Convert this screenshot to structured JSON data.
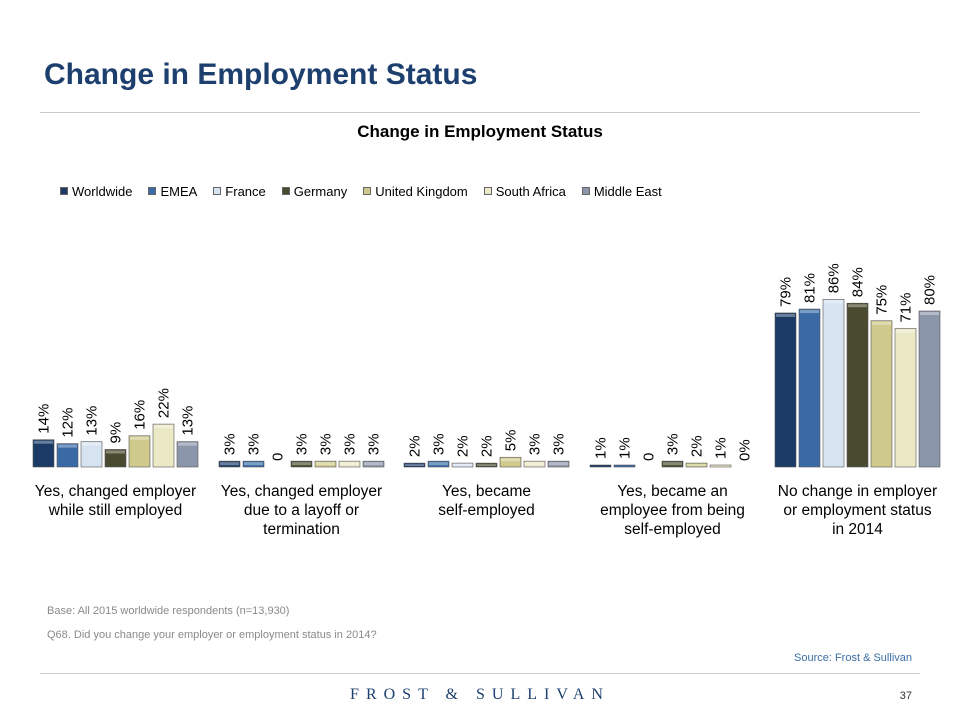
{
  "page": {
    "title": "Change in Employment Status",
    "base_note": "Base: All 2015 worldwide respondents (n=13,930)",
    "question_note": "Q68. Did you change your employer or employment status in 2014?",
    "source": "Source: Frost & Sullivan",
    "logo": "FROST & SULLIVAN",
    "page_number": "37"
  },
  "chart_data": {
    "type": "bar",
    "title": "Change in Employment Status",
    "legend_position": "top",
    "grid": false,
    "ylim": [
      0,
      100
    ],
    "categories": [
      "Yes, changed employer while still employed",
      "Yes, changed employer due to a layoff or termination",
      "Yes, became self-employed",
      "Yes, became an employee from being self-employed",
      "No change in employer or employment status in 2014"
    ],
    "series": [
      {
        "name": "Worldwide",
        "color": "#1b3b66",
        "values": [
          14,
          3,
          2,
          1,
          79
        ],
        "labels": [
          "14%",
          "3%",
          "2%",
          "1%",
          "79%"
        ]
      },
      {
        "name": "EMEA",
        "color": "#3a6aa6",
        "values": [
          12,
          3,
          3,
          1,
          81
        ],
        "labels": [
          "12%",
          "3%",
          "3%",
          "1%",
          "81%"
        ]
      },
      {
        "name": "France",
        "color": "#d6e3f0",
        "values": [
          13,
          0,
          2,
          0,
          86
        ],
        "labels": [
          "13%",
          "0",
          "2%",
          "0",
          "86%"
        ]
      },
      {
        "name": "Germany",
        "color": "#4a4a30",
        "values": [
          9,
          3,
          2,
          3,
          84
        ],
        "labels": [
          "9%",
          "3%",
          "2%",
          "3%",
          "84%"
        ]
      },
      {
        "name": "United Kingdom",
        "color": "#cfc98c",
        "values": [
          16,
          3,
          5,
          2,
          75
        ],
        "labels": [
          "16%",
          "3%",
          "5%",
          "2%",
          "75%"
        ]
      },
      {
        "name": "South Africa",
        "color": "#ebe8c6",
        "values": [
          22,
          3,
          3,
          1,
          71
        ],
        "labels": [
          "22%",
          "3%",
          "3%",
          "1%",
          "71%"
        ]
      },
      {
        "name": "Middle East",
        "color": "#8c96aa",
        "values": [
          13,
          3,
          3,
          0,
          80
        ],
        "labels": [
          "13%",
          "3%",
          "3%",
          "0%",
          "80%"
        ]
      }
    ]
  }
}
